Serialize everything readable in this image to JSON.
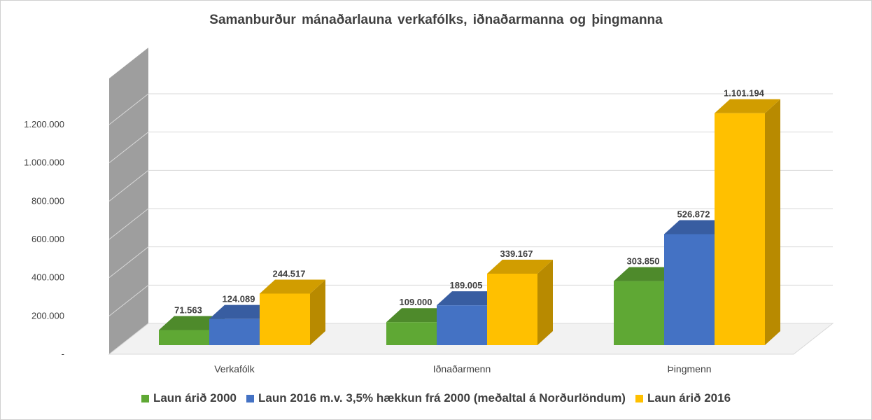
{
  "chart_data": {
    "type": "bar",
    "title": "Samanburður  mánaðarlauna  verkafólks, iðnaðarmanna  og þingmanna",
    "categories": [
      "Verkafólk",
      "Iðnaðarmenn",
      "Þingmenn"
    ],
    "series": [
      {
        "name": "Laun árið 2000",
        "values": [
          71563,
          109000,
          303850
        ],
        "labels": [
          "71.563",
          "109.000",
          "303.850"
        ],
        "color": "#5fa834"
      },
      {
        "name": "Laun 2016 m.v. 3,5% hækkun frá 2000 (meðaltal á Norðurlöndum)",
        "values": [
          124089,
          189005,
          526872
        ],
        "labels": [
          "124.089",
          "189.005",
          "526.872"
        ],
        "color": "#4472c4"
      },
      {
        "name": "Laun árið 2016",
        "values": [
          244517,
          339167,
          1101194
        ],
        "labels": [
          "244.517",
          "339.167",
          "1.101.194"
        ],
        "color": "#ffc000"
      }
    ],
    "yticks": [
      "-",
      "200.000",
      "400.000",
      "600.000",
      "800.000",
      "1.000.000",
      "1.200.000"
    ],
    "ylim": [
      0,
      1200000
    ],
    "grid": true,
    "legend": "bottom",
    "style": "3d clustered column"
  }
}
